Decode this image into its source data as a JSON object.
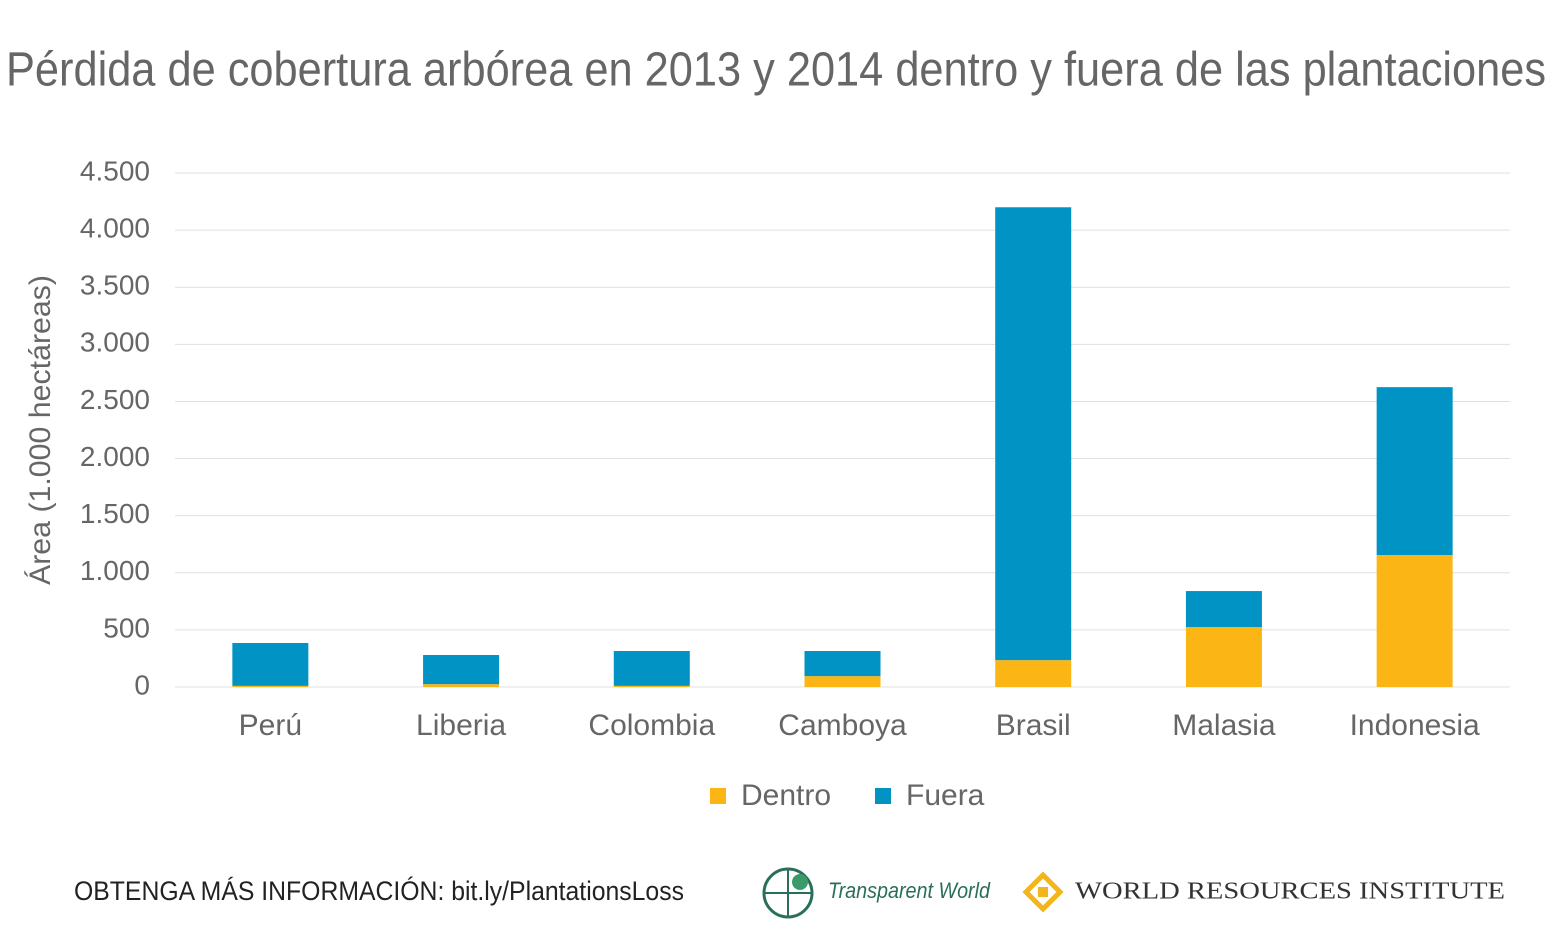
{
  "chart_data": {
    "type": "bar",
    "stacked": true,
    "title": "Pérdida de cobertura arbórea en 2013 y 2014 dentro y fuera de las plantaciones",
    "y_label": "Área (1.000 hectáreas)",
    "categories": [
      "Perú",
      "Liberia",
      "Colombia",
      "Camboya",
      "Brasil",
      "Malasia",
      "Indonesia"
    ],
    "series": [
      {
        "name": "Dentro",
        "color": "#fbb615",
        "values": [
          10,
          25,
          10,
          95,
          235,
          525,
          1155
        ]
      },
      {
        "name": "Fuera",
        "color": "#0093c4",
        "values": [
          375,
          255,
          305,
          220,
          3965,
          315,
          1470
        ]
      }
    ],
    "ylim": [
      0,
      4500
    ],
    "yticks": [
      0,
      500,
      {
        "value": 1000,
        "label": "1.000"
      },
      {
        "value": 1500,
        "label": "1.500"
      },
      {
        "value": 2000,
        "label": "2.000"
      },
      {
        "value": 2500,
        "label": "2.500"
      },
      {
        "value": 3000,
        "label": "3.000"
      },
      {
        "value": 3500,
        "label": "3.500"
      },
      {
        "value": 4000,
        "label": "4.000"
      },
      {
        "value": 4500,
        "label": "4.500"
      }
    ],
    "grid": true,
    "legend": "bottom"
  },
  "footer": {
    "info": "OBTENGA MÁS INFORMACIÓN: bit.ly/PlantationsLoss",
    "logo1": "Transparent World",
    "logo2": "WORLD RESOURCES INSTITUTE"
  }
}
